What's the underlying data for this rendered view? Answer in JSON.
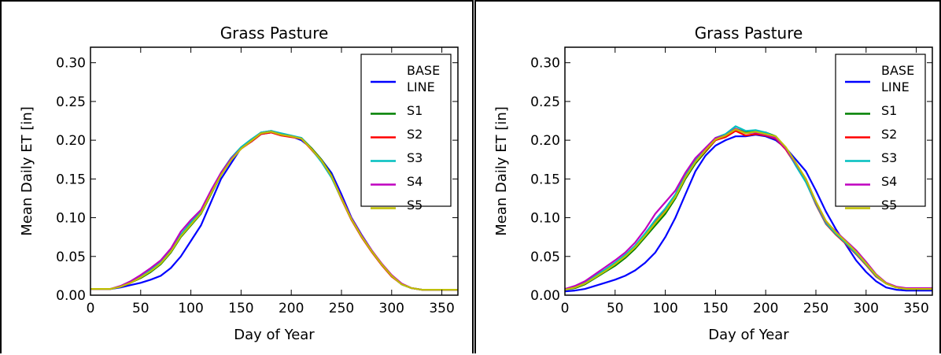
{
  "chart_data": [
    {
      "type": "line",
      "title": "Grass Pasture",
      "xlabel": "Day of Year",
      "ylabel": "Mean Daily ET [in]",
      "xlim": [
        0,
        366
      ],
      "ylim": [
        0,
        0.32
      ],
      "xticks": [
        "0",
        "50",
        "100",
        "150",
        "200",
        "250",
        "300",
        "350"
      ],
      "yticks": [
        "0.00",
        "0.05",
        "0.10",
        "0.15",
        "0.20",
        "0.25",
        "0.30"
      ],
      "grid": false,
      "legend_position": "top-right",
      "x": [
        0,
        20,
        30,
        40,
        50,
        60,
        70,
        80,
        90,
        100,
        110,
        120,
        130,
        140,
        150,
        160,
        170,
        180,
        190,
        200,
        210,
        220,
        230,
        240,
        250,
        260,
        270,
        280,
        290,
        300,
        310,
        320,
        330,
        340,
        350,
        366
      ],
      "series": [
        {
          "name": "BASE LINE",
          "color": "#0000ff",
          "values": [
            0.008,
            0.008,
            0.01,
            0.013,
            0.016,
            0.02,
            0.025,
            0.035,
            0.05,
            0.07,
            0.09,
            0.12,
            0.15,
            0.17,
            0.19,
            0.198,
            0.208,
            0.21,
            0.208,
            0.205,
            0.2,
            0.19,
            0.175,
            0.158,
            0.13,
            0.1,
            0.078,
            0.058,
            0.04,
            0.025,
            0.014,
            0.009,
            0.007,
            0.007,
            0.007,
            0.007
          ]
        },
        {
          "name": "S1",
          "color": "#008000",
          "values": [
            0.008,
            0.008,
            0.011,
            0.016,
            0.022,
            0.03,
            0.04,
            0.055,
            0.075,
            0.09,
            0.105,
            0.13,
            0.155,
            0.175,
            0.19,
            0.2,
            0.21,
            0.212,
            0.208,
            0.205,
            0.203,
            0.19,
            0.175,
            0.155,
            0.125,
            0.098,
            0.076,
            0.057,
            0.04,
            0.025,
            0.014,
            0.009,
            0.007,
            0.007,
            0.007,
            0.007
          ]
        },
        {
          "name": "S2",
          "color": "#ff0000",
          "values": [
            0.008,
            0.008,
            0.011,
            0.016,
            0.023,
            0.032,
            0.042,
            0.057,
            0.077,
            0.092,
            0.107,
            0.132,
            0.156,
            0.175,
            0.189,
            0.198,
            0.208,
            0.21,
            0.206,
            0.204,
            0.202,
            0.188,
            0.173,
            0.153,
            0.124,
            0.097,
            0.075,
            0.056,
            0.039,
            0.024,
            0.014,
            0.009,
            0.007,
            0.007,
            0.007,
            0.007
          ]
        },
        {
          "name": "S3",
          "color": "#00bfbf",
          "values": [
            0.008,
            0.008,
            0.011,
            0.017,
            0.024,
            0.033,
            0.043,
            0.058,
            0.078,
            0.094,
            0.108,
            0.133,
            0.158,
            0.177,
            0.191,
            0.201,
            0.21,
            0.212,
            0.209,
            0.206,
            0.203,
            0.189,
            0.172,
            0.152,
            0.125,
            0.098,
            0.076,
            0.057,
            0.04,
            0.025,
            0.014,
            0.009,
            0.007,
            0.007,
            0.007,
            0.007
          ]
        },
        {
          "name": "S4",
          "color": "#bf00bf",
          "values": [
            0.008,
            0.008,
            0.012,
            0.018,
            0.026,
            0.035,
            0.045,
            0.06,
            0.082,
            0.097,
            0.11,
            0.135,
            0.158,
            0.176,
            0.189,
            0.199,
            0.209,
            0.211,
            0.207,
            0.205,
            0.202,
            0.189,
            0.174,
            0.154,
            0.126,
            0.099,
            0.077,
            0.058,
            0.041,
            0.026,
            0.015,
            0.009,
            0.007,
            0.007,
            0.007,
            0.007
          ]
        },
        {
          "name": "S5",
          "color": "#bfbf00",
          "values": [
            0.008,
            0.008,
            0.011,
            0.016,
            0.023,
            0.031,
            0.041,
            0.056,
            0.076,
            0.091,
            0.106,
            0.131,
            0.155,
            0.174,
            0.189,
            0.199,
            0.209,
            0.211,
            0.207,
            0.205,
            0.202,
            0.189,
            0.174,
            0.154,
            0.125,
            0.098,
            0.076,
            0.057,
            0.04,
            0.025,
            0.014,
            0.009,
            0.007,
            0.007,
            0.007,
            0.007
          ]
        }
      ]
    },
    {
      "type": "line",
      "title": "Grass Pasture",
      "xlabel": "Day of Year",
      "ylabel": "Mean Daily ET [in]",
      "xlim": [
        0,
        366
      ],
      "ylim": [
        0,
        0.32
      ],
      "xticks": [
        "0",
        "50",
        "100",
        "150",
        "200",
        "250",
        "300",
        "350"
      ],
      "yticks": [
        "0.00",
        "0.05",
        "0.10",
        "0.15",
        "0.20",
        "0.25",
        "0.30"
      ],
      "grid": false,
      "legend_position": "top-right",
      "x": [
        0,
        10,
        20,
        30,
        40,
        50,
        60,
        70,
        80,
        90,
        100,
        110,
        120,
        130,
        140,
        150,
        160,
        170,
        180,
        190,
        200,
        210,
        220,
        230,
        240,
        250,
        260,
        270,
        280,
        290,
        300,
        310,
        320,
        330,
        340,
        350,
        366
      ],
      "series": [
        {
          "name": "BASE LINE",
          "color": "#0000ff",
          "values": [
            0.005,
            0.006,
            0.008,
            0.012,
            0.016,
            0.02,
            0.025,
            0.032,
            0.042,
            0.055,
            0.075,
            0.1,
            0.13,
            0.16,
            0.18,
            0.193,
            0.2,
            0.205,
            0.205,
            0.207,
            0.205,
            0.2,
            0.19,
            0.175,
            0.16,
            0.135,
            0.108,
            0.085,
            0.065,
            0.045,
            0.03,
            0.018,
            0.01,
            0.007,
            0.006,
            0.006,
            0.006
          ]
        },
        {
          "name": "S1",
          "color": "#008000",
          "values": [
            0.007,
            0.009,
            0.014,
            0.022,
            0.03,
            0.038,
            0.048,
            0.06,
            0.075,
            0.09,
            0.105,
            0.125,
            0.15,
            0.17,
            0.185,
            0.2,
            0.205,
            0.215,
            0.21,
            0.212,
            0.21,
            0.205,
            0.19,
            0.17,
            0.15,
            0.12,
            0.095,
            0.08,
            0.068,
            0.055,
            0.04,
            0.025,
            0.015,
            0.01,
            0.008,
            0.008,
            0.008
          ]
        },
        {
          "name": "S2",
          "color": "#ff0000",
          "values": [
            0.007,
            0.01,
            0.015,
            0.024,
            0.032,
            0.041,
            0.051,
            0.063,
            0.078,
            0.095,
            0.11,
            0.128,
            0.152,
            0.172,
            0.186,
            0.2,
            0.204,
            0.212,
            0.206,
            0.208,
            0.206,
            0.202,
            0.188,
            0.168,
            0.147,
            0.117,
            0.092,
            0.078,
            0.066,
            0.053,
            0.039,
            0.024,
            0.015,
            0.01,
            0.008,
            0.008,
            0.008
          ]
        },
        {
          "name": "S3",
          "color": "#00bfbf",
          "values": [
            0.007,
            0.01,
            0.016,
            0.025,
            0.033,
            0.042,
            0.052,
            0.064,
            0.08,
            0.097,
            0.112,
            0.13,
            0.155,
            0.175,
            0.189,
            0.203,
            0.208,
            0.218,
            0.212,
            0.213,
            0.21,
            0.204,
            0.19,
            0.167,
            0.146,
            0.118,
            0.093,
            0.079,
            0.067,
            0.054,
            0.04,
            0.025,
            0.015,
            0.01,
            0.008,
            0.008,
            0.008
          ]
        },
        {
          "name": "S4",
          "color": "#bf00bf",
          "values": [
            0.008,
            0.012,
            0.018,
            0.027,
            0.036,
            0.045,
            0.055,
            0.068,
            0.085,
            0.105,
            0.12,
            0.135,
            0.158,
            0.177,
            0.19,
            0.203,
            0.206,
            0.215,
            0.209,
            0.21,
            0.207,
            0.203,
            0.189,
            0.17,
            0.15,
            0.12,
            0.095,
            0.082,
            0.07,
            0.058,
            0.043,
            0.027,
            0.016,
            0.011,
            0.009,
            0.009,
            0.009
          ]
        },
        {
          "name": "S5",
          "color": "#bfbf00",
          "values": [
            0.007,
            0.01,
            0.015,
            0.023,
            0.031,
            0.04,
            0.05,
            0.062,
            0.077,
            0.093,
            0.108,
            0.127,
            0.152,
            0.172,
            0.187,
            0.201,
            0.206,
            0.214,
            0.209,
            0.211,
            0.208,
            0.205,
            0.191,
            0.171,
            0.15,
            0.121,
            0.096,
            0.081,
            0.069,
            0.056,
            0.041,
            0.026,
            0.015,
            0.01,
            0.008,
            0.008,
            0.008
          ]
        }
      ]
    }
  ]
}
